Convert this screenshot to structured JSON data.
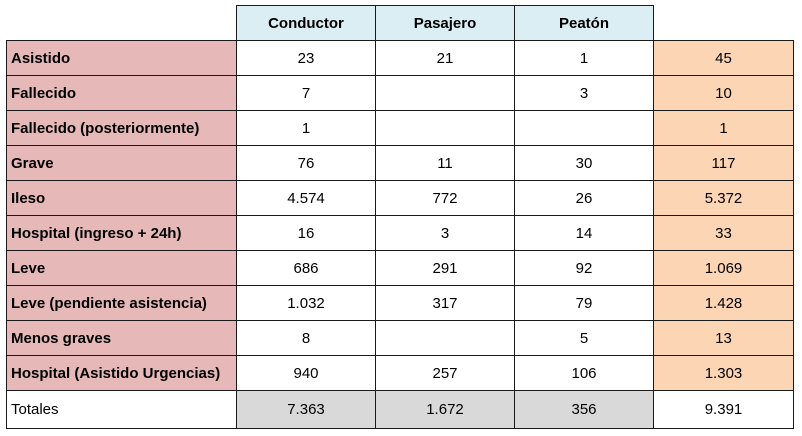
{
  "columns": [
    "Conductor",
    "Pasajero",
    "Peatón"
  ],
  "rows": [
    {
      "label": "Asistido",
      "values": [
        "23",
        "21",
        "1"
      ],
      "total": "45"
    },
    {
      "label": "Fallecido",
      "values": [
        "7",
        "",
        "3"
      ],
      "total": "10"
    },
    {
      "label": "Fallecido (posteriormente)",
      "values": [
        "1",
        "",
        ""
      ],
      "total": "1"
    },
    {
      "label": "Grave",
      "values": [
        "76",
        "11",
        "30"
      ],
      "total": "117"
    },
    {
      "label": "Ileso",
      "values": [
        "4.574",
        "772",
        "26"
      ],
      "total": "5.372"
    },
    {
      "label": "Hospital (ingreso + 24h)",
      "values": [
        "16",
        "3",
        "14"
      ],
      "total": "33"
    },
    {
      "label": "Leve",
      "values": [
        "686",
        "291",
        "92"
      ],
      "total": "1.069"
    },
    {
      "label": "Leve (pendiente asistencia)",
      "values": [
        "1.032",
        "317",
        "79"
      ],
      "total": "1.428"
    },
    {
      "label": "Menos graves",
      "values": [
        "8",
        "",
        "5"
      ],
      "total": "13"
    },
    {
      "label": "Hospital (Asistido Urgencias)",
      "values": [
        "940",
        "257",
        "106"
      ],
      "total": "1.303"
    }
  ],
  "totals": {
    "label": "Totales",
    "values": [
      "7.363",
      "1.672",
      "356"
    ],
    "grand_total": "9.391"
  },
  "colors": {
    "row_label_fill": "#e6b8b7",
    "header_fill": "#daeef3",
    "total_column_fill": "#fcd5b4",
    "totals_row_fill": "#d9d9d9",
    "border": "#1a1a1a"
  }
}
